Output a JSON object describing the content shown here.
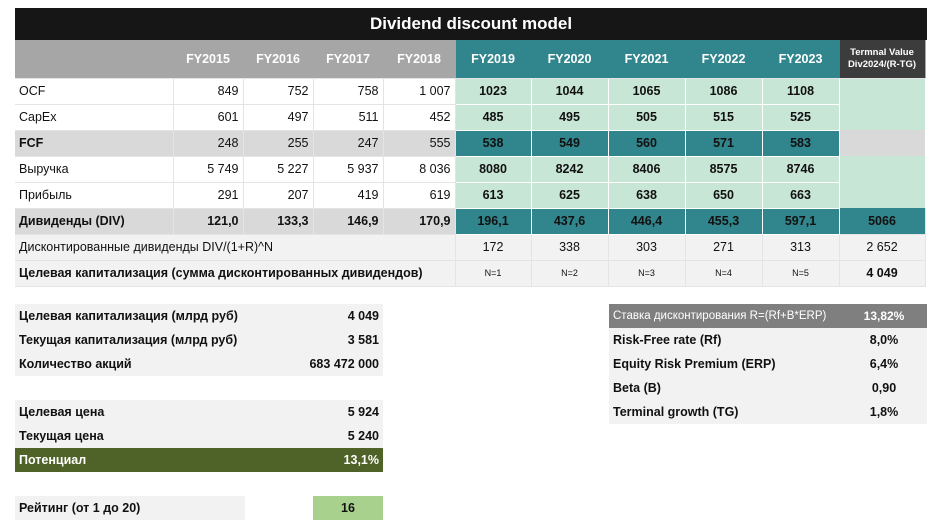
{
  "title": "Dividend discount model",
  "header": {
    "years_hist": [
      "FY2015",
      "FY2016",
      "FY2017",
      "FY2018"
    ],
    "years_proj": [
      "FY2019",
      "FY2020",
      "FY2021",
      "FY2022",
      "FY2023"
    ],
    "tv_line1": "Termnal Value",
    "tv_line2": "Div2024/(R-TG)"
  },
  "rows": [
    {
      "label": "OCF",
      "hist": [
        "849",
        "752",
        "758",
        "1 007"
      ],
      "proj": [
        "1023",
        "1044",
        "1065",
        "1086",
        "1108"
      ]
    },
    {
      "label": "CapEx",
      "hist": [
        "601",
        "497",
        "511",
        "452"
      ],
      "proj": [
        "485",
        "495",
        "505",
        "515",
        "525"
      ]
    },
    {
      "label": "FCF",
      "hist": [
        "248",
        "255",
        "247",
        "555"
      ],
      "proj": [
        "538",
        "549",
        "560",
        "571",
        "583"
      ]
    },
    {
      "label": "Выручка",
      "hist": [
        "5 749",
        "5 227",
        "5 937",
        "8 036"
      ],
      "proj": [
        "8080",
        "8242",
        "8406",
        "8575",
        "8746"
      ]
    },
    {
      "label": "Прибыль",
      "hist": [
        "291",
        "207",
        "419",
        "619"
      ],
      "proj": [
        "613",
        "625",
        "638",
        "650",
        "663"
      ]
    },
    {
      "label": "Дивиденды (DIV)",
      "hist": [
        "121,0",
        "133,3",
        "146,9",
        "170,9"
      ],
      "proj": [
        "196,1",
        "437,6",
        "446,4",
        "455,3",
        "597,1"
      ],
      "tv": "5066"
    }
  ],
  "discounted": {
    "label": "Дисконтированные дивиденды DIV/(1+R)^N",
    "proj": [
      "172",
      "338",
      "303",
      "271",
      "313"
    ],
    "tv": "2 652"
  },
  "target_cap_row": {
    "label": "Целевая капитализация (сумма дисконтированных дивидендов)",
    "n": [
      "N=1",
      "N=2",
      "N=3",
      "N=4",
      "N=5"
    ],
    "total": "4 049"
  },
  "summary": {
    "target_cap_label": "Целевая капитализация (млрд руб)",
    "target_cap": "4 049",
    "current_cap_label": "Текущая капитализация (млрд руб)",
    "current_cap": "3 581",
    "shares_label": "Количество акций",
    "shares": "683 472 000",
    "target_price_label": "Целевая цена",
    "target_price": "5 924",
    "current_price_label": "Текущая цена",
    "current_price": "5 240",
    "potential_label": "Потенциал",
    "potential": "13,1%",
    "rating_label": "Рейтинг (от 1 до 20)",
    "rating": "16"
  },
  "rates": {
    "discount_label": "Ставка дисконтирования R=(Rf+B*ERP)",
    "discount": "13,82%",
    "rf_label": "Risk-Free rate (Rf)",
    "rf": "8,0%",
    "erp_label": "Equity Risk Premium (ERP)",
    "erp": "6,4%",
    "beta_label": "Beta (B)",
    "beta": "0,90",
    "tg_label": "Terminal growth (TG)",
    "tg": "1,8%"
  },
  "colors": {
    "title_bg": "#161616",
    "proj_header": "#31858c",
    "proj_cell": "#c8e6d6",
    "potential_bg": "#4f6228",
    "rating_bg": "#a9d18e"
  }
}
